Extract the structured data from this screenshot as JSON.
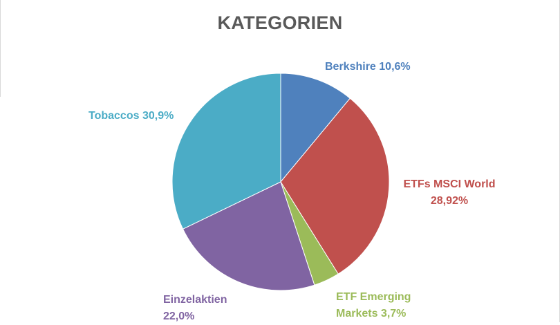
{
  "chart_data": {
    "type": "pie",
    "title": "KATEGORIEN",
    "slices": [
      {
        "name": "Berkshire",
        "value": 10.6,
        "label_name": "Berkshire",
        "label_value": "10,6%",
        "color": "#4f81bd"
      },
      {
        "name": "ETFs MSCI World",
        "value": 28.92,
        "label_name": "ETFs MSCI World",
        "label_value": "28,92%",
        "color": "#c0504d"
      },
      {
        "name": "ETF Emerging Markets",
        "value": 3.7,
        "label_name": "ETF Emerging",
        "label_value": "Markets 3,7%",
        "color": "#9bbb59"
      },
      {
        "name": "Einzelaktien",
        "value": 22.0,
        "label_name": "Einzelaktien",
        "label_value": "22,0%",
        "color": "#8064a2"
      },
      {
        "name": "Tobaccos",
        "value": 30.9,
        "label_name": "Tobaccos",
        "label_value": "30,9%",
        "color": "#4bacc6"
      }
    ],
    "start_angle": "12 o'clock",
    "direction": "clockwise",
    "legend": "none"
  }
}
